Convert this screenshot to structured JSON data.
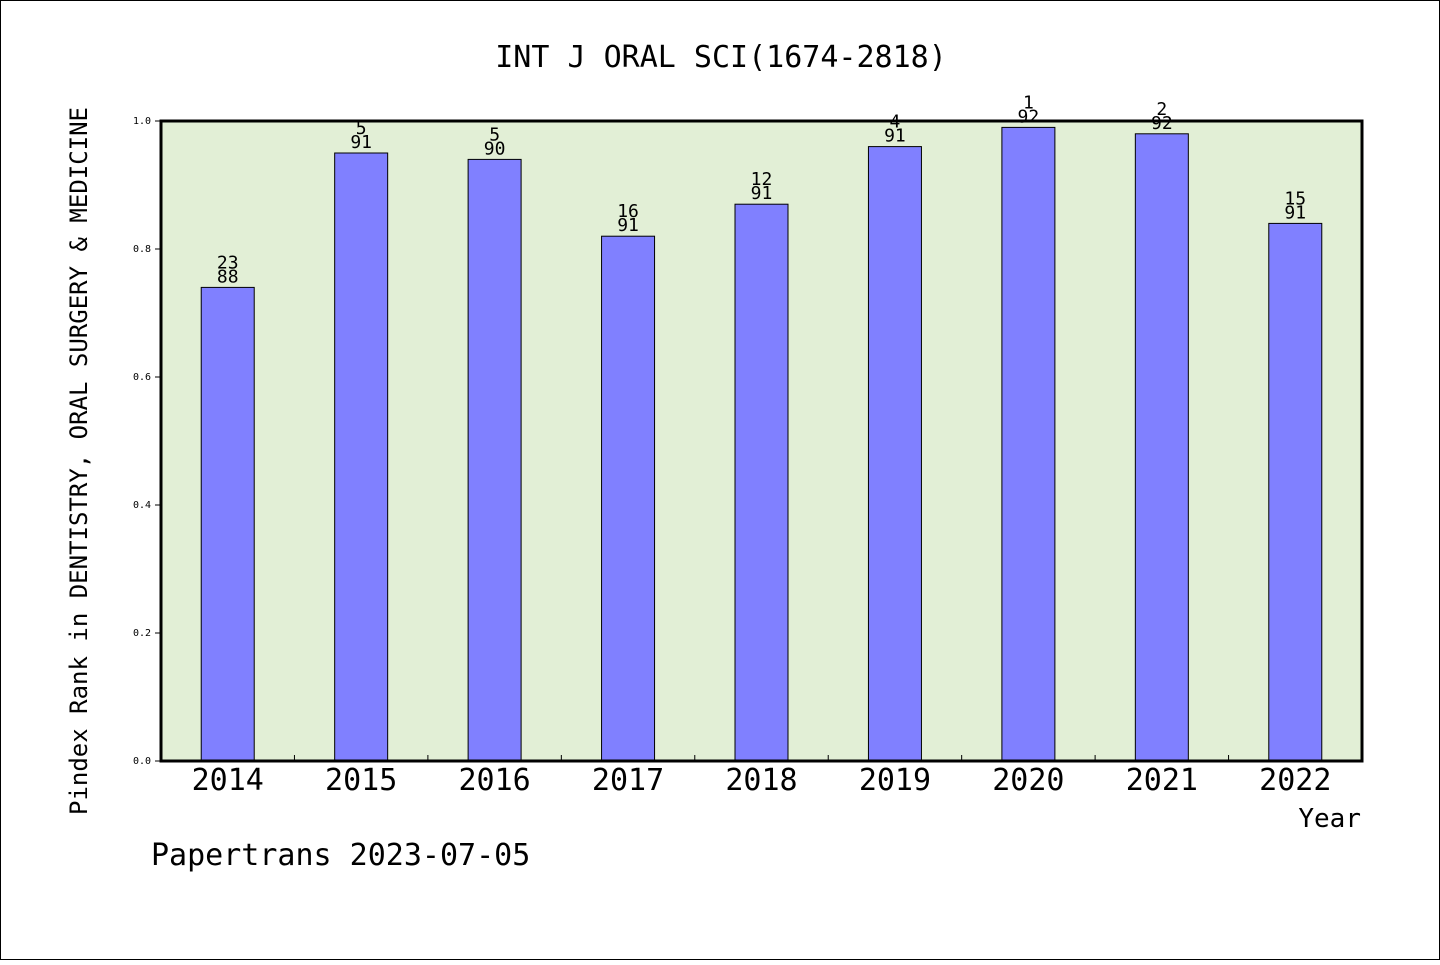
{
  "colors": {
    "plot_background": "#e2efd6",
    "bar_fill": "#8080ff",
    "bar_stroke": "#000000",
    "text": "#000000"
  },
  "footer": {
    "credit": "Papertrans 2023-07-05"
  },
  "chart_data": {
    "type": "bar",
    "title": "INT J ORAL SCI(1674-2818)",
    "xlabel": "Year",
    "ylabel": "Pindex Rank in DENTISTRY, ORAL SURGERY & MEDICINE",
    "ylim": [
      0,
      1.0
    ],
    "yticks": [
      "0.0",
      "0.2",
      "0.4",
      "0.6",
      "0.8",
      "1.0"
    ],
    "categories": [
      "2014",
      "2015",
      "2016",
      "2017",
      "2018",
      "2019",
      "2020",
      "2021",
      "2022"
    ],
    "values": [
      0.74,
      0.95,
      0.94,
      0.82,
      0.87,
      0.96,
      0.99,
      0.98,
      0.84
    ],
    "rank_labels": [
      "23",
      "5",
      "5",
      "16",
      "12",
      "4",
      "1",
      "2",
      "15"
    ],
    "total_labels": [
      "88",
      "91",
      "90",
      "91",
      "91",
      "91",
      "92",
      "92",
      "91"
    ],
    "grid": false,
    "legend": "none"
  }
}
